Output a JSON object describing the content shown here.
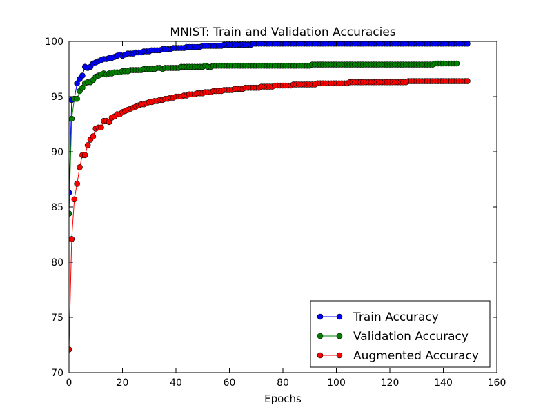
{
  "chart_data": {
    "type": "line",
    "title": "MNIST: Train and Validation Accuracies",
    "xlabel": "Epochs",
    "ylabel": "",
    "xlim": [
      0,
      160
    ],
    "ylim": [
      70,
      100
    ],
    "xticks": [
      0,
      20,
      40,
      60,
      80,
      100,
      120,
      140,
      160
    ],
    "yticks": [
      70,
      75,
      80,
      85,
      90,
      95,
      100
    ],
    "grid": false,
    "legend_position": "lower-right",
    "series": [
      {
        "name": "Train Accuracy",
        "color": "#0000ff",
        "x_start": 0,
        "x_step": 1,
        "values": [
          86.3,
          94.7,
          94.8,
          96.2,
          96.6,
          96.9,
          97.7,
          97.6,
          97.7,
          98.0,
          98.1,
          98.2,
          98.3,
          98.4,
          98.4,
          98.5,
          98.5,
          98.6,
          98.7,
          98.8,
          98.7,
          98.8,
          98.9,
          98.9,
          98.9,
          99.0,
          99.0,
          99.0,
          99.1,
          99.1,
          99.1,
          99.2,
          99.2,
          99.2,
          99.2,
          99.3,
          99.3,
          99.3,
          99.3,
          99.4,
          99.4,
          99.4,
          99.4,
          99.4,
          99.5,
          99.5,
          99.5,
          99.5,
          99.5,
          99.5,
          99.6,
          99.6,
          99.6,
          99.6,
          99.6,
          99.6,
          99.6,
          99.6,
          99.7,
          99.7,
          99.7,
          99.7,
          99.7,
          99.7,
          99.7,
          99.7,
          99.7,
          99.7,
          99.7,
          99.8,
          99.8,
          99.8,
          99.8,
          99.8,
          99.8,
          99.8,
          99.8,
          99.8,
          99.8,
          99.8,
          99.8,
          99.8,
          99.8,
          99.8,
          99.8,
          99.8,
          99.8,
          99.8,
          99.8,
          99.8,
          99.8,
          99.8,
          99.8,
          99.8,
          99.8,
          99.8,
          99.8,
          99.8,
          99.8,
          99.8,
          99.8,
          99.8,
          99.8,
          99.8,
          99.8,
          99.8,
          99.8,
          99.8,
          99.8,
          99.8,
          99.8,
          99.8,
          99.8,
          99.8,
          99.8,
          99.8,
          99.8,
          99.8,
          99.8,
          99.8,
          99.8,
          99.8,
          99.8,
          99.8,
          99.8,
          99.8,
          99.8,
          99.8,
          99.8,
          99.8,
          99.8,
          99.8,
          99.8,
          99.8,
          99.8,
          99.8,
          99.8,
          99.8,
          99.8,
          99.8,
          99.8,
          99.8,
          99.8,
          99.8,
          99.8,
          99.8,
          99.8,
          99.8,
          99.8,
          99.8
        ]
      },
      {
        "name": "Validation Accuracy",
        "color": "#008000",
        "x_start": 0,
        "x_step": 1,
        "values": [
          84.4,
          93.0,
          94.8,
          94.8,
          95.5,
          95.8,
          96.2,
          96.3,
          96.3,
          96.5,
          96.8,
          96.9,
          97.0,
          97.1,
          97.0,
          97.1,
          97.1,
          97.2,
          97.2,
          97.2,
          97.3,
          97.3,
          97.3,
          97.4,
          97.4,
          97.4,
          97.4,
          97.4,
          97.5,
          97.5,
          97.5,
          97.5,
          97.5,
          97.6,
          97.6,
          97.5,
          97.6,
          97.6,
          97.6,
          97.6,
          97.6,
          97.6,
          97.7,
          97.7,
          97.7,
          97.7,
          97.7,
          97.7,
          97.7,
          97.7,
          97.7,
          97.8,
          97.7,
          97.7,
          97.8,
          97.8,
          97.8,
          97.8,
          97.8,
          97.8,
          97.8,
          97.8,
          97.8,
          97.8,
          97.8,
          97.8,
          97.8,
          97.8,
          97.8,
          97.8,
          97.8,
          97.8,
          97.8,
          97.8,
          97.8,
          97.8,
          97.8,
          97.8,
          97.8,
          97.8,
          97.8,
          97.8,
          97.8,
          97.8,
          97.8,
          97.8,
          97.8,
          97.8,
          97.8,
          97.8,
          97.8,
          97.9,
          97.9,
          97.9,
          97.9,
          97.9,
          97.9,
          97.9,
          97.9,
          97.9,
          97.9,
          97.9,
          97.9,
          97.9,
          97.9,
          97.9,
          97.9,
          97.9,
          97.9,
          97.9,
          97.9,
          97.9,
          97.9,
          97.9,
          97.9,
          97.9,
          97.9,
          97.9,
          97.9,
          97.9,
          97.9,
          97.9,
          97.9,
          97.9,
          97.9,
          97.9,
          97.9,
          97.9,
          97.9,
          97.9,
          97.9,
          97.9,
          97.9,
          97.9,
          97.9,
          97.9,
          97.9,
          98.0,
          98.0,
          98.0,
          98.0,
          98.0,
          98.0,
          98.0,
          98.0,
          98.0
        ]
      },
      {
        "name": "Augmented Accuracy",
        "color": "#ff0000",
        "x_start": 0,
        "x_step": 1,
        "values": [
          72.1,
          82.1,
          85.7,
          87.1,
          88.6,
          89.7,
          89.7,
          90.6,
          91.1,
          91.4,
          92.1,
          92.2,
          92.2,
          92.8,
          92.8,
          92.7,
          93.1,
          93.2,
          93.4,
          93.4,
          93.6,
          93.7,
          93.8,
          93.9,
          94.0,
          94.1,
          94.2,
          94.3,
          94.3,
          94.4,
          94.5,
          94.5,
          94.6,
          94.6,
          94.7,
          94.7,
          94.8,
          94.8,
          94.9,
          94.9,
          95.0,
          95.0,
          95.0,
          95.1,
          95.1,
          95.2,
          95.2,
          95.2,
          95.3,
          95.3,
          95.3,
          95.4,
          95.4,
          95.4,
          95.5,
          95.5,
          95.5,
          95.5,
          95.6,
          95.6,
          95.6,
          95.6,
          95.7,
          95.7,
          95.7,
          95.7,
          95.8,
          95.8,
          95.8,
          95.8,
          95.8,
          95.8,
          95.9,
          95.9,
          95.9,
          95.9,
          95.9,
          96.0,
          96.0,
          96.0,
          96.0,
          96.0,
          96.0,
          96.0,
          96.1,
          96.1,
          96.1,
          96.1,
          96.1,
          96.1,
          96.1,
          96.1,
          96.1,
          96.2,
          96.2,
          96.2,
          96.2,
          96.2,
          96.2,
          96.2,
          96.2,
          96.2,
          96.2,
          96.2,
          96.2,
          96.3,
          96.3,
          96.3,
          96.3,
          96.3,
          96.3,
          96.3,
          96.3,
          96.3,
          96.3,
          96.3,
          96.3,
          96.3,
          96.3,
          96.3,
          96.3,
          96.3,
          96.3,
          96.3,
          96.3,
          96.3,
          96.3,
          96.4,
          96.4,
          96.4,
          96.4,
          96.4,
          96.4,
          96.4,
          96.4,
          96.4,
          96.4,
          96.4,
          96.4,
          96.4,
          96.4,
          96.4,
          96.4,
          96.4,
          96.4,
          96.4,
          96.4,
          96.4,
          96.4,
          96.4
        ]
      }
    ]
  }
}
